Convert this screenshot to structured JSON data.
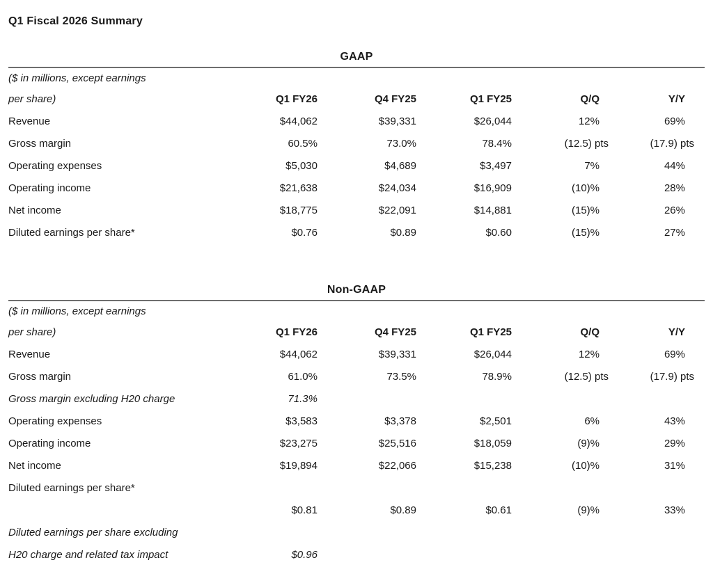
{
  "page_title": "Q1 Fiscal 2026 Summary",
  "sections": {
    "gaap": {
      "title": "GAAP",
      "unit_note_line1": "($ in millions, except earnings",
      "unit_note_line2": "per share)",
      "columns": [
        "Q1 FY26",
        "Q4 FY25",
        "Q1 FY25",
        "Q/Q",
        "Y/Y"
      ],
      "rows": [
        {
          "label": "Revenue",
          "values": [
            "$44,062",
            "$39,331",
            "$26,044",
            "12%",
            "69%"
          ]
        },
        {
          "label": "Gross margin",
          "values": [
            "60.5%",
            "73.0%",
            "78.4%",
            "(12.5) pts",
            "(17.9) pts"
          ]
        },
        {
          "label": "Operating expenses",
          "values": [
            "$5,030",
            "$4,689",
            "$3,497",
            "7%",
            "44%"
          ]
        },
        {
          "label": "Operating income",
          "values": [
            "$21,638",
            "$24,034",
            "$16,909",
            "(10)%",
            "28%"
          ]
        },
        {
          "label": "Net income",
          "values": [
            "$18,775",
            "$22,091",
            "$14,881",
            "(15)%",
            "26%"
          ]
        },
        {
          "label": "Diluted earnings per share*",
          "values": [
            "$0.76",
            "$0.89",
            "$0.60",
            "(15)%",
            "27%"
          ]
        }
      ]
    },
    "non_gaap": {
      "title": "Non-GAAP",
      "unit_note_line1": "($ in millions, except earnings",
      "unit_note_line2": "per share)",
      "columns": [
        "Q1 FY26",
        "Q4 FY25",
        "Q1 FY25",
        "Q/Q",
        "Y/Y"
      ],
      "rows": [
        {
          "label": "Revenue",
          "values": [
            "$44,062",
            "$39,331",
            "$26,044",
            "12%",
            "69%"
          ]
        },
        {
          "label": "Gross margin",
          "values": [
            "61.0%",
            "73.5%",
            "78.9%",
            "(12.5) pts",
            "(17.9) pts"
          ]
        },
        {
          "label": "Gross margin excluding H20 charge",
          "italic": true,
          "values": [
            "71.3%",
            "",
            "",
            "",
            ""
          ]
        },
        {
          "label": "Operating expenses",
          "values": [
            "$3,583",
            "$3,378",
            "$2,501",
            "6%",
            "43%"
          ]
        },
        {
          "label": "Operating income",
          "values": [
            "$23,275",
            "$25,516",
            "$18,059",
            "(9)%",
            "29%"
          ]
        },
        {
          "label": "Net income",
          "values": [
            "$19,894",
            "$22,066",
            "$15,238",
            "(10)%",
            "31%"
          ]
        },
        {
          "label": "Diluted earnings per share*",
          "values": [
            "",
            "",
            "",
            "",
            ""
          ]
        },
        {
          "label": "",
          "values": [
            "$0.81",
            "$0.89",
            "$0.61",
            "(9)%",
            "33%"
          ]
        },
        {
          "label": "Diluted earnings per share excluding",
          "italic": true,
          "values": [
            "",
            "",
            "",
            "",
            ""
          ]
        },
        {
          "label": "H20 charge and related tax impact",
          "italic": true,
          "values": [
            "$0.96",
            "",
            "",
            "",
            ""
          ]
        }
      ]
    }
  }
}
